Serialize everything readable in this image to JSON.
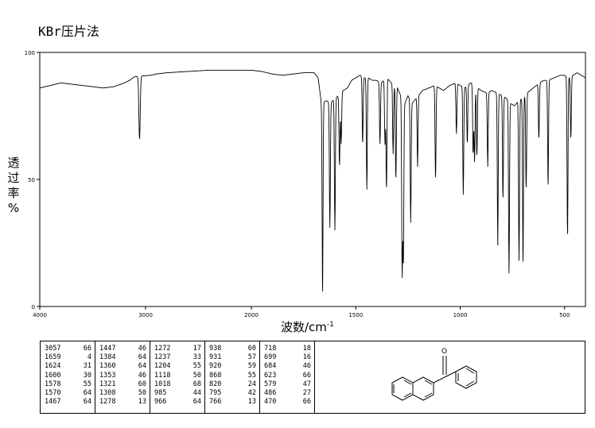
{
  "title": "KBr压片法",
  "chart_data": {
    "type": "line",
    "xlabel": "波数/cm",
    "xlabel_sup": "-1",
    "ylabel": [
      "透",
      "过",
      "率",
      "%"
    ],
    "xlim": [
      4000,
      400
    ],
    "ylim": [
      0,
      100
    ],
    "x_ticks": [
      4000,
      3000,
      2000,
      1500,
      1000,
      500
    ],
    "y_ticks": [
      0,
      50,
      100
    ],
    "baseline": [
      [
        4000,
        86
      ],
      [
        3800,
        88
      ],
      [
        3600,
        87
      ],
      [
        3400,
        86
      ],
      [
        3300,
        86.5
      ],
      [
        3200,
        88
      ],
      [
        3150,
        89
      ],
      [
        3120,
        90
      ],
      [
        3100,
        90.5
      ],
      [
        2950,
        91
      ],
      [
        2900,
        91.5
      ],
      [
        2800,
        92
      ],
      [
        2600,
        92.5
      ],
      [
        2400,
        93
      ],
      [
        2200,
        93
      ],
      [
        2000,
        93
      ],
      [
        1950,
        92.5
      ],
      [
        1900,
        91.5
      ],
      [
        1850,
        91
      ],
      [
        1800,
        91.5
      ],
      [
        1750,
        92
      ],
      [
        1700,
        92
      ],
      [
        1680,
        90
      ],
      [
        1665,
        80
      ],
      [
        1640,
        81
      ],
      [
        1620,
        80
      ],
      [
        1600,
        82
      ],
      [
        1580,
        83
      ],
      [
        1560,
        85
      ],
      [
        1540,
        86
      ],
      [
        1520,
        89
      ],
      [
        1500,
        90
      ],
      [
        1480,
        91
      ],
      [
        1460,
        90
      ],
      [
        1440,
        90
      ],
      [
        1420,
        89
      ],
      [
        1400,
        89
      ],
      [
        1380,
        88
      ],
      [
        1350,
        90
      ],
      [
        1330,
        88
      ],
      [
        1300,
        86
      ],
      [
        1280,
        82
      ],
      [
        1265,
        80
      ],
      [
        1250,
        83
      ],
      [
        1230,
        80
      ],
      [
        1210,
        82
      ],
      [
        1180,
        85
      ],
      [
        1150,
        86
      ],
      [
        1120,
        87
      ],
      [
        1100,
        86
      ],
      [
        1080,
        85
      ],
      [
        1050,
        87
      ],
      [
        1020,
        88
      ],
      [
        1000,
        87
      ],
      [
        980,
        86
      ],
      [
        950,
        88
      ],
      [
        930,
        87
      ],
      [
        900,
        85
      ],
      [
        870,
        84
      ],
      [
        850,
        85
      ],
      [
        820,
        84
      ],
      [
        800,
        83
      ],
      [
        780,
        82
      ],
      [
        760,
        80
      ],
      [
        740,
        79
      ],
      [
        720,
        81
      ],
      [
        700,
        82
      ],
      [
        680,
        84
      ],
      [
        650,
        86
      ],
      [
        620,
        88
      ],
      [
        600,
        89
      ],
      [
        580,
        89
      ],
      [
        550,
        90
      ],
      [
        520,
        91
      ],
      [
        500,
        91
      ],
      [
        480,
        90
      ],
      [
        460,
        91
      ],
      [
        440,
        92
      ],
      [
        420,
        91
      ],
      [
        400,
        90
      ]
    ],
    "peaks": [
      {
        "x": 3057,
        "y": 66
      },
      {
        "x": 1659,
        "y": 4
      },
      {
        "x": 1624,
        "y": 31
      },
      {
        "x": 1600,
        "y": 30
      },
      {
        "x": 1578,
        "y": 55
      },
      {
        "x": 1570,
        "y": 64
      },
      {
        "x": 1467,
        "y": 64
      },
      {
        "x": 1447,
        "y": 46
      },
      {
        "x": 1384,
        "y": 64
      },
      {
        "x": 1360,
        "y": 64
      },
      {
        "x": 1353,
        "y": 46
      },
      {
        "x": 1321,
        "y": 60
      },
      {
        "x": 1308,
        "y": 50
      },
      {
        "x": 1278,
        "y": 13
      },
      {
        "x": 1272,
        "y": 17
      },
      {
        "x": 1237,
        "y": 33
      },
      {
        "x": 1204,
        "y": 55
      },
      {
        "x": 1118,
        "y": 50
      },
      {
        "x": 1018,
        "y": 68
      },
      {
        "x": 985,
        "y": 44
      },
      {
        "x": 966,
        "y": 64
      },
      {
        "x": 938,
        "y": 60
      },
      {
        "x": 931,
        "y": 57
      },
      {
        "x": 920,
        "y": 59
      },
      {
        "x": 868,
        "y": 55
      },
      {
        "x": 820,
        "y": 24
      },
      {
        "x": 795,
        "y": 42
      },
      {
        "x": 766,
        "y": 13
      },
      {
        "x": 718,
        "y": 18
      },
      {
        "x": 699,
        "y": 16
      },
      {
        "x": 684,
        "y": 46
      },
      {
        "x": 623,
        "y": 66
      },
      {
        "x": 579,
        "y": 47
      },
      {
        "x": 486,
        "y": 27
      },
      {
        "x": 470,
        "y": 66
      }
    ]
  },
  "peak_table": {
    "columns": [
      [
        [
          "3057",
          "66"
        ],
        [
          "1659",
          "4"
        ],
        [
          "1624",
          "31"
        ],
        [
          "1600",
          "30"
        ],
        [
          "1578",
          "55"
        ],
        [
          "1570",
          "64"
        ],
        [
          "1467",
          "64"
        ]
      ],
      [
        [
          "1447",
          "46"
        ],
        [
          "1384",
          "64"
        ],
        [
          "1360",
          "64"
        ],
        [
          "1353",
          "46"
        ],
        [
          "1321",
          "60"
        ],
        [
          "1308",
          "50"
        ],
        [
          "1278",
          "13"
        ]
      ],
      [
        [
          "1272",
          "17"
        ],
        [
          "1237",
          "33"
        ],
        [
          "1204",
          "55"
        ],
        [
          "1118",
          "50"
        ],
        [
          "1018",
          "68"
        ],
        [
          "985",
          "44"
        ],
        [
          "966",
          "64"
        ]
      ],
      [
        [
          "938",
          "60"
        ],
        [
          "931",
          "57"
        ],
        [
          "920",
          "59"
        ],
        [
          "868",
          "55"
        ],
        [
          "820",
          "24"
        ],
        [
          "795",
          "42"
        ],
        [
          "766",
          "13"
        ]
      ],
      [
        [
          "718",
          "18"
        ],
        [
          "699",
          "16"
        ],
        [
          "684",
          "46"
        ],
        [
          "623",
          "66"
        ],
        [
          "579",
          "47"
        ],
        [
          "486",
          "27"
        ],
        [
          "470",
          "66"
        ]
      ]
    ]
  },
  "structure": {
    "oxygen_label": "O"
  }
}
